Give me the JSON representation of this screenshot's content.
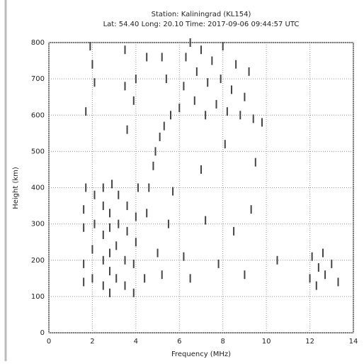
{
  "chart_data": {
    "type": "scatter",
    "title": "Station: Kaliningrad (KL154)",
    "subtitle": "Lat: 54.40 Long: 20.10 Time: 2017-09-06 09:44:57 UTC",
    "x_label": "Frequency (MHz)",
    "y_label": "Height (km)",
    "xlim": [
      0,
      14
    ],
    "ylim": [
      0,
      800
    ],
    "xticks": [
      0,
      2,
      4,
      6,
      8,
      10,
      12,
      14
    ],
    "yticks": [
      0,
      100,
      200,
      300,
      400,
      500,
      600,
      700,
      800
    ],
    "grid": true,
    "color": "#444444",
    "x": [
      1.6,
      1.6,
      1.6,
      1.6,
      1.7,
      2.0,
      2.0,
      2.1,
      2.1,
      2.5,
      2.5,
      2.5,
      2.5,
      2.5,
      2.8,
      2.8,
      2.8,
      2.8,
      2.8,
      2.9,
      3.1,
      3.1,
      3.2,
      3.2,
      3.5,
      3.5,
      3.6,
      3.6,
      3.9,
      3.9,
      4.0,
      4.0,
      4.1,
      4.4,
      4.5,
      4.6,
      5.0,
      5.2,
      5.5,
      5.7,
      6.2,
      6.5,
      7.2,
      7.8,
      8.5,
      9.0,
      9.3,
      10.5,
      12.0,
      12.1,
      12.3,
      12.4,
      12.6,
      12.7,
      13.0,
      13.3,
      4.8,
      4.9,
      5.1,
      5.3,
      5.6,
      6.0,
      6.2,
      6.3,
      6.5,
      6.7,
      6.8,
      7.0,
      7.2,
      7.3,
      7.5,
      7.7,
      7.9,
      8.0,
      8.2,
      8.4,
      8.6,
      8.8,
      9.0,
      9.2,
      9.4,
      9.8,
      8.1,
      7.0,
      9.5,
      1.9,
      2.0,
      2.1,
      1.7,
      3.5,
      3.5,
      4.0,
      4.5,
      3.6,
      3.9,
      5.2,
      5.4
    ],
    "y": [
      140,
      190,
      290,
      340,
      400,
      150,
      230,
      300,
      380,
      130,
      200,
      270,
      350,
      400,
      110,
      170,
      220,
      290,
      330,
      410,
      150,
      240,
      300,
      380,
      130,
      200,
      280,
      350,
      110,
      190,
      250,
      320,
      400,
      150,
      330,
      400,
      220,
      160,
      300,
      390,
      210,
      150,
      310,
      190,
      280,
      160,
      340,
      200,
      150,
      210,
      130,
      180,
      220,
      160,
      190,
      140,
      460,
      500,
      540,
      570,
      600,
      620,
      680,
      760,
      800,
      640,
      720,
      780,
      600,
      690,
      750,
      630,
      700,
      790,
      610,
      670,
      740,
      600,
      650,
      720,
      590,
      580,
      520,
      450,
      470,
      790,
      740,
      690,
      610,
      680,
      780,
      700,
      760,
      560,
      640,
      760,
      700
    ]
  }
}
